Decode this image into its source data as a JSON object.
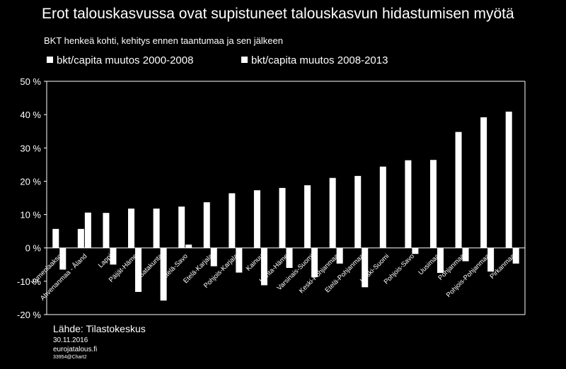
{
  "title": "Erot talouskasvussa ovat supistuneet talouskasvun hidastumisen myötä",
  "subtitle": "BKT henkeä kohti, kehitys ennen taantumaa ja sen jälkeen",
  "source": "Lähde: Tilastokeskus",
  "date": "30.11.2016",
  "site": "eurojatalous.fi",
  "code": "33954@Chart2",
  "colors": {
    "background": "#000000",
    "bars": "#ffffff",
    "text": "#ffffff"
  },
  "chart_data": {
    "type": "bar",
    "ylim": [
      -20,
      50
    ],
    "yticks": [
      -20,
      -10,
      0,
      10,
      20,
      30,
      40,
      50
    ],
    "ytick_labels": [
      "-20 %",
      "-10 %",
      "0 %",
      "10 %",
      "20 %",
      "30 %",
      "40 %",
      "50 %"
    ],
    "grid": false,
    "legend_position": "top",
    "categories": [
      "Kymenlaakso",
      "Ahvenanmaa - Åland",
      "Lappi",
      "Päijät-Häme",
      "Satakunta",
      "Etelä-Savo",
      "Etelä-Karjala",
      "Pohjois-Karjala",
      "Kainuu",
      "Kanta-Häme",
      "Varsinais-Suomi",
      "Keski-Pohjanmaa",
      "Etelä-Pohjanmaa",
      "Keski-Suomi",
      "Pohjois-Savo",
      "Uusimaa",
      "Pohjanmaa",
      "Pohjois-Pohjanmaa",
      "Pirkanmaa"
    ],
    "series": [
      {
        "name": "bkt/capita muutos 2000-2008",
        "values": [
          5.7,
          5.7,
          10.5,
          11.8,
          11.8,
          12.4,
          13.7,
          16.4,
          17.3,
          18.0,
          18.8,
          21.0,
          21.6,
          24.4,
          26.3,
          26.4,
          34.8,
          39.2,
          40.9
        ]
      },
      {
        "name": "bkt/capita muutos 2008-2013",
        "values": [
          -6.5,
          10.6,
          -5.0,
          -13.2,
          -15.8,
          1.0,
          -5.5,
          -7.4,
          -11.2,
          -6.0,
          -8.8,
          -4.7,
          -11.8,
          0.0,
          -1.8,
          -7.5,
          -4.0,
          -7.1,
          -4.7
        ]
      }
    ]
  }
}
